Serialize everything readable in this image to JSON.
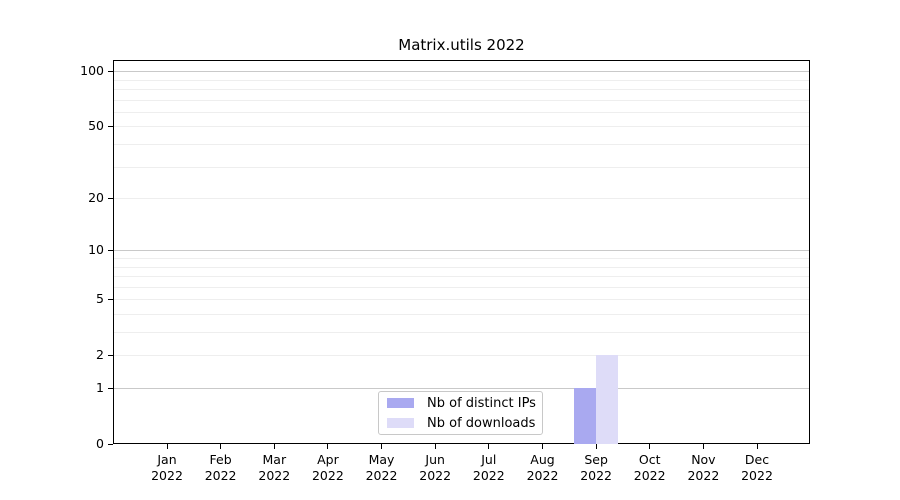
{
  "chart_data": {
    "type": "bar",
    "title": "Matrix.utils 2022",
    "categories": [
      "Jan 2022",
      "Feb 2022",
      "Mar 2022",
      "Apr 2022",
      "May 2022",
      "Jun 2022",
      "Jul 2022",
      "Aug 2022",
      "Sep 2022",
      "Oct 2022",
      "Nov 2022",
      "Dec 2022"
    ],
    "series": [
      {
        "name": "Nb of distinct IPs",
        "color": "#a9a9f0",
        "values": [
          0,
          0,
          0,
          0,
          0,
          0,
          0,
          0,
          1,
          0,
          0,
          0
        ]
      },
      {
        "name": "Nb of downloads",
        "color": "#dedcf8",
        "values": [
          0,
          0,
          0,
          0,
          0,
          0,
          0,
          0,
          2,
          0,
          0,
          0
        ]
      }
    ],
    "y_axis": {
      "ticks": [
        0,
        1,
        2,
        5,
        10,
        20,
        50,
        100
      ],
      "minor_ticks": [
        3,
        4,
        6,
        7,
        8,
        9,
        30,
        40,
        60,
        70,
        80,
        90
      ],
      "scale": "log1p",
      "range": [
        0,
        115
      ]
    },
    "x_axis": {
      "tick_label_year_on_second_line": true
    },
    "grid": "horizontal",
    "legend": {
      "position": "bottom-center",
      "entries": [
        "Nb of distinct IPs",
        "Nb of downloads"
      ]
    },
    "colors": {
      "major_grid": "#c9c9c9",
      "minor_grid": "#eeeeee",
      "axis": "#000000",
      "background": "#ffffff"
    }
  }
}
